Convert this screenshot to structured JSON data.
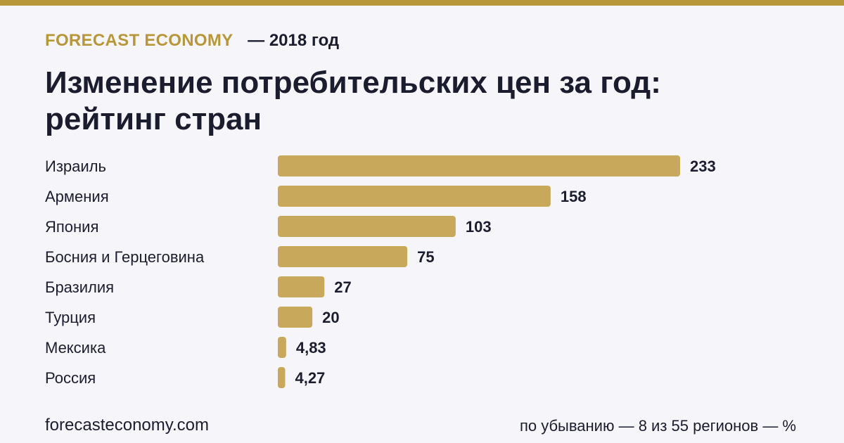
{
  "header": {
    "brand": "FORECAST ECONOMY",
    "period": "— 2018 год"
  },
  "title": "Изменение потребительских цен за год: рейтинг стран",
  "chart_data": {
    "type": "bar",
    "orientation": "horizontal",
    "categories": [
      "Израиль",
      "Армения",
      "Япония",
      "Босния и Герцеговина",
      "Бразилия",
      "Турция",
      "Мексика",
      "Россия"
    ],
    "values": [
      233,
      158,
      103,
      75,
      27,
      20,
      4.83,
      4.27
    ],
    "value_labels": [
      "233",
      "158",
      "103",
      "75",
      "27",
      "20",
      "4,83",
      "4,27"
    ],
    "bar_color": "#c8a95c",
    "grid": false,
    "legend": "none"
  },
  "footer": {
    "source": "forecasteconomy.com",
    "note": "по убыванию — 8 из 55 регионов — %"
  },
  "colors": {
    "accent": "#b8963a",
    "bar": "#c8a95c",
    "text": "#1b1d2e",
    "background": "#f6f6fa"
  }
}
